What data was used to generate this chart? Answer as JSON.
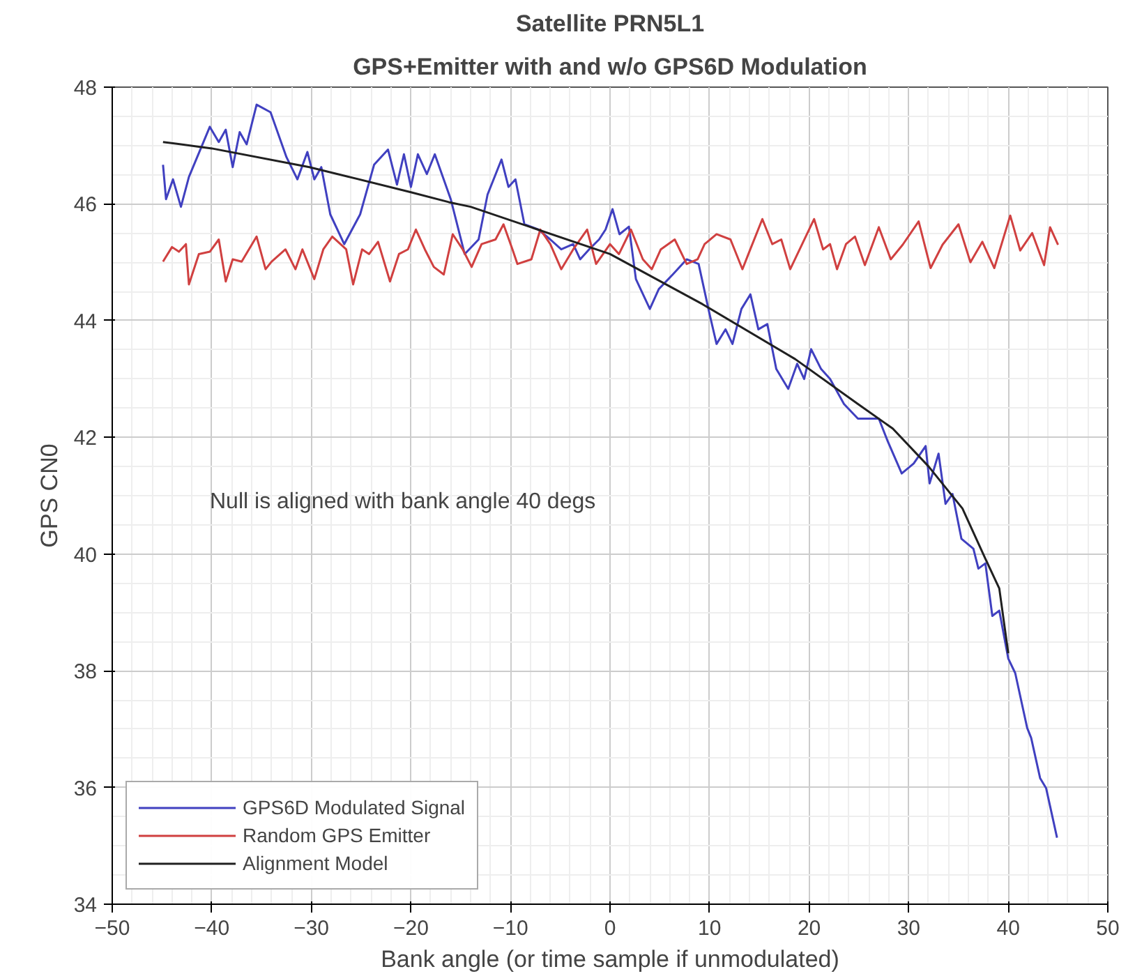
{
  "chart_data": {
    "type": "line",
    "title": "Satellite PRN5L1",
    "subtitle": "GPS+Emitter with and w/o GPS6D Modulation",
    "xlabel": "Bank angle (or time sample if unmodulated)",
    "ylabel": "GPS CN0",
    "xlim": [
      -50,
      50
    ],
    "xticks": [
      -50,
      -40,
      -30,
      -20,
      -10,
      0,
      10,
      20,
      30,
      40,
      50
    ],
    "ylim": [
      34,
      48
    ],
    "yticks": [
      34,
      36,
      38,
      40,
      42,
      44,
      46,
      48
    ],
    "grid": true,
    "legend": "bottom left",
    "line_style": "solid",
    "annotations": [
      "Null is aligned with bank angle 40 degs"
    ],
    "series": [
      {
        "name": "GPS6D Modulated Signal",
        "color": "#4040c0",
        "x": [
          -44.9,
          -44.6,
          -43.9,
          -43.1,
          -42.3,
          -40.2,
          -39.3,
          -38.6,
          -37.9,
          -37.2,
          -36.5,
          -35.5,
          -34.1,
          -32.5,
          -31.4,
          -30.4,
          -29.7,
          -29.0,
          -28.1,
          -26.7,
          -25.1,
          -23.7,
          -22.3,
          -21.4,
          -20.7,
          -20.0,
          -19.3,
          -18.4,
          -17.6,
          -16.0,
          -14.6,
          -13.2,
          -12.3,
          -10.9,
          -10.2,
          -9.5,
          -8.6,
          -7.2,
          -6.0,
          -4.9,
          -3.7,
          -3.0,
          -2.1,
          -1.1,
          -0.45,
          0.25,
          0.95,
          1.9,
          2.6,
          4.0,
          4.9,
          6.3,
          7.7,
          8.9,
          10.0,
          10.7,
          11.6,
          12.3,
          13.2,
          14.1,
          14.9,
          15.8,
          16.7,
          17.9,
          18.8,
          19.5,
          20.2,
          21.2,
          22.1,
          23.5,
          24.9,
          27.0,
          27.9,
          29.3,
          30.5,
          31.7,
          32.1,
          33.0,
          33.7,
          34.4,
          35.3,
          36.5,
          37.0,
          37.7,
          38.4,
          39.1,
          40.0,
          40.7,
          41.9,
          42.3,
          43.2,
          43.8,
          44.9
        ],
        "values": [
          46.67,
          46.08,
          46.42,
          45.95,
          46.46,
          47.32,
          47.06,
          47.27,
          46.63,
          47.23,
          47.02,
          47.7,
          47.57,
          46.8,
          46.42,
          46.89,
          46.42,
          46.63,
          45.82,
          45.31,
          45.82,
          46.67,
          46.93,
          46.33,
          46.85,
          46.29,
          46.85,
          46.51,
          46.85,
          46.08,
          45.14,
          45.39,
          46.16,
          46.76,
          46.29,
          46.42,
          45.65,
          45.56,
          45.39,
          45.22,
          45.31,
          45.05,
          45.22,
          45.39,
          45.56,
          45.91,
          45.48,
          45.61,
          44.71,
          44.2,
          44.54,
          44.79,
          45.05,
          44.97,
          44.11,
          43.6,
          43.85,
          43.6,
          44.2,
          44.45,
          43.85,
          43.94,
          43.17,
          42.83,
          43.26,
          43.0,
          43.51,
          43.17,
          43.0,
          42.57,
          42.32,
          42.32,
          41.93,
          41.38,
          41.55,
          41.85,
          41.21,
          41.72,
          40.86,
          41.03,
          40.26,
          40.09,
          39.75,
          39.84,
          38.94,
          39.03,
          38.21,
          37.96,
          37.02,
          36.85,
          36.16,
          35.99,
          35.14
        ]
      },
      {
        "name": "Random GPS Emitter",
        "color": "#d04040",
        "x": [
          -44.9,
          -44.0,
          -43.3,
          -42.6,
          -42.3,
          -41.3,
          -40.2,
          -39.3,
          -38.6,
          -37.9,
          -37.0,
          -35.5,
          -34.6,
          -34.0,
          -32.6,
          -31.6,
          -30.9,
          -29.7,
          -28.8,
          -27.9,
          -26.5,
          -25.8,
          -24.9,
          -24.2,
          -23.3,
          -22.1,
          -21.2,
          -20.3,
          -19.5,
          -18.6,
          -17.7,
          -16.7,
          -15.8,
          -14.8,
          -13.9,
          -12.9,
          -11.5,
          -10.7,
          -9.8,
          -9.3,
          -7.9,
          -7.0,
          -6.0,
          -4.9,
          -3.7,
          -2.3,
          -1.4,
          0.0,
          0.9,
          2.1,
          3.3,
          4.2,
          5.1,
          6.5,
          7.7,
          8.8,
          9.5,
          10.7,
          12.1,
          13.3,
          13.9,
          15.3,
          16.3,
          17.2,
          18.1,
          19.3,
          20.5,
          21.4,
          22.1,
          22.8,
          23.7,
          24.6,
          25.6,
          27.0,
          28.2,
          29.4,
          31.0,
          32.2,
          33.4,
          35.0,
          36.2,
          37.4,
          38.6,
          40.2,
          41.2,
          42.4,
          43.6,
          44.2,
          45.0
        ],
        "values": [
          45.01,
          45.26,
          45.18,
          45.31,
          44.62,
          45.14,
          45.18,
          45.39,
          44.67,
          45.05,
          45.01,
          45.44,
          44.88,
          45.01,
          45.22,
          44.88,
          45.22,
          44.71,
          45.22,
          45.44,
          45.22,
          44.62,
          45.22,
          45.14,
          45.35,
          44.67,
          45.14,
          45.22,
          45.56,
          45.22,
          44.92,
          44.79,
          45.48,
          45.22,
          44.92,
          45.31,
          45.39,
          45.65,
          45.22,
          44.97,
          45.05,
          45.56,
          45.31,
          44.88,
          45.22,
          45.56,
          44.97,
          45.31,
          45.14,
          45.56,
          45.05,
          44.88,
          45.22,
          45.39,
          44.97,
          45.05,
          45.31,
          45.48,
          45.39,
          44.88,
          45.14,
          45.74,
          45.31,
          45.39,
          44.88,
          45.31,
          45.74,
          45.22,
          45.31,
          44.88,
          45.31,
          45.44,
          44.95,
          45.6,
          45.05,
          45.3,
          45.7,
          44.9,
          45.3,
          45.65,
          45.0,
          45.35,
          44.9,
          45.8,
          45.2,
          45.5,
          44.95,
          45.6,
          45.3
        ]
      },
      {
        "name": "Alignment Model",
        "color": "#202020",
        "x": [
          -44.9,
          -40,
          -30.2,
          -20,
          -16.2,
          -14.0,
          0,
          9.3,
          18.6,
          24.9,
          28.4,
          32.0,
          35.4,
          37.7,
          39.1,
          40.0
        ],
        "values": [
          47.06,
          46.95,
          46.63,
          46.2,
          46.03,
          45.95,
          45.14,
          44.28,
          43.34,
          42.57,
          42.15,
          41.5,
          40.78,
          39.92,
          39.41,
          38.3
        ]
      }
    ]
  }
}
